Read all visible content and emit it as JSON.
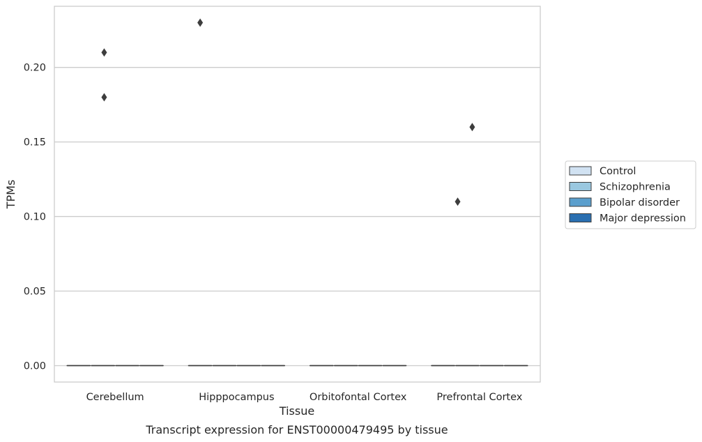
{
  "chart_data": {
    "type": "box",
    "title": "",
    "caption": "Transcript expression for ENST00000479495 by tissue",
    "xlabel": "Tissue",
    "ylabel": "TPMs",
    "ylim": [
      -0.011,
      0.241
    ],
    "yticks": [
      "0.00",
      "0.05",
      "0.10",
      "0.15",
      "0.20"
    ],
    "ytick_values": [
      0,
      0.05,
      0.1,
      0.15,
      0.2
    ],
    "grid": "horizontal",
    "legend_position": "right",
    "categories": [
      "Cerebellum",
      "Hipppocampus",
      "Orbitofontal Cortex",
      "Prefrontal Cortex"
    ],
    "series": [
      {
        "name": "Control",
        "color": "#d1e2f2"
      },
      {
        "name": "Schizophrenia",
        "color": "#9ac8e0"
      },
      {
        "name": "Bipolar disorder",
        "color": "#5b9fcd"
      },
      {
        "name": "Major depression",
        "color": "#2a6fb0"
      }
    ],
    "boxes": [
      {
        "category": "Cerebellum",
        "median": 0.0,
        "q1": 0.0,
        "q3": 0.0,
        "whisker_low": 0.0,
        "whisker_high": 0.0
      },
      {
        "category": "Hipppocampus",
        "median": 0.0,
        "q1": 0.0,
        "q3": 0.0,
        "whisker_low": 0.0,
        "whisker_high": 0.0
      },
      {
        "category": "Orbitofontal Cortex",
        "median": 0.0,
        "q1": 0.0,
        "q3": 0.0,
        "whisker_low": 0.0,
        "whisker_high": 0.0
      },
      {
        "category": "Prefrontal Cortex",
        "median": 0.0,
        "q1": 0.0,
        "q3": 0.0,
        "whisker_low": 0.0,
        "whisker_high": 0.0
      }
    ],
    "outliers": [
      {
        "category": "Cerebellum",
        "value": 0.21
      },
      {
        "category": "Cerebellum",
        "value": 0.18
      },
      {
        "category": "Hipppocampus",
        "value": 0.23
      },
      {
        "category": "Prefrontal Cortex",
        "value": 0.16
      },
      {
        "category": "Prefrontal Cortex",
        "value": 0.11
      }
    ]
  }
}
